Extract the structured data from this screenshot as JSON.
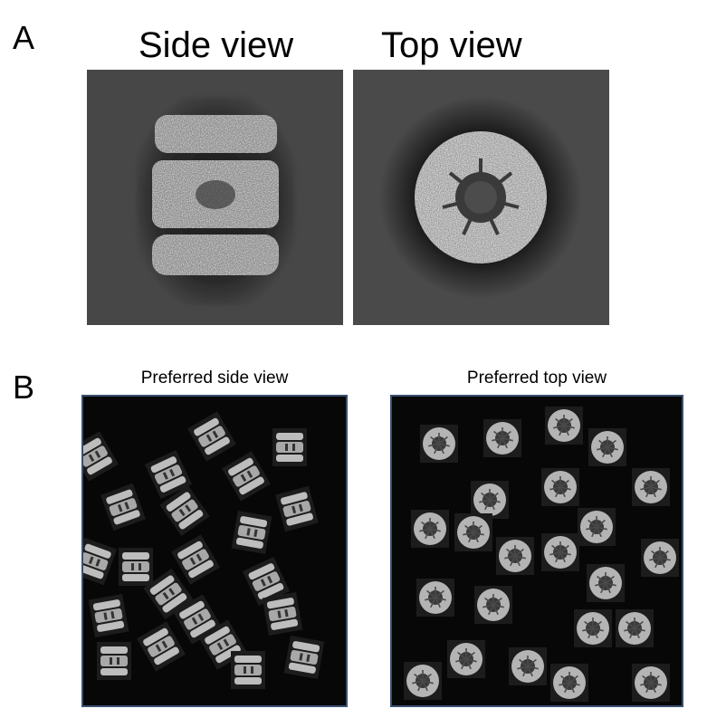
{
  "panel_a": {
    "letter": "A",
    "side_title": "Side view",
    "top_title": "Top view"
  },
  "panel_b": {
    "letter": "B",
    "side_title": "Preferred side view",
    "top_title": "Preferred top view"
  },
  "colors": {
    "field_background": "#070707",
    "field_border": "#3a5070",
    "em_background": "#454545"
  }
}
